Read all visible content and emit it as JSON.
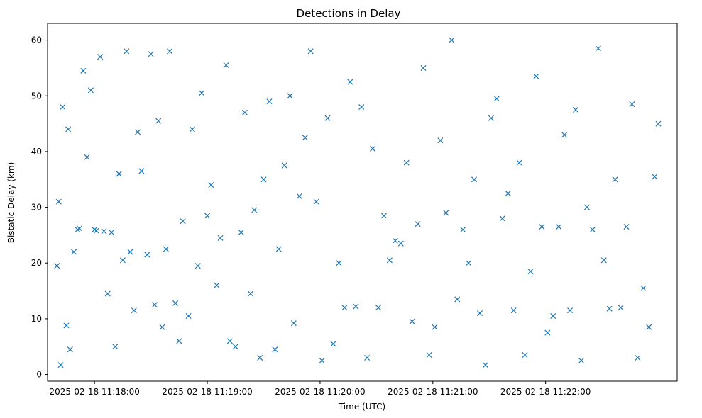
{
  "chart_data": {
    "type": "scatter",
    "title": "Detections in Delay",
    "xlabel": "Time (UTC)",
    "ylabel": "Bistatic Delay (km)",
    "x_ticks": [
      "2025-02-18 11:18:00",
      "2025-02-18 11:19:00",
      "2025-02-18 11:20:00",
      "2025-02-18 11:21:00",
      "2025-02-18 11:22:00"
    ],
    "y_ticks": [
      0,
      10,
      20,
      30,
      40,
      50,
      60
    ],
    "xlim": [
      "2025-02-18 11:17:35",
      "2025-02-18 11:23:10"
    ],
    "ylim": [
      -1.2,
      63.0
    ],
    "marker": "x",
    "color": "#1f77b4",
    "grid": false,
    "series": [
      {
        "x": [
          "11:17:40",
          "11:17:41",
          "11:17:42",
          "11:17:43",
          "11:17:45",
          "11:17:46",
          "11:17:47",
          "11:17:49",
          "11:17:51",
          "11:17:52",
          "11:17:54",
          "11:17:56",
          "11:17:58",
          "11:18:00",
          "11:18:01",
          "11:18:03",
          "11:18:05",
          "11:18:07",
          "11:18:09",
          "11:18:11",
          "11:18:13",
          "11:18:15",
          "11:18:17",
          "11:18:19",
          "11:18:21",
          "11:18:23",
          "11:18:25",
          "11:18:28",
          "11:18:30",
          "11:18:32",
          "11:18:34",
          "11:18:36",
          "11:18:38",
          "11:18:40",
          "11:18:43",
          "11:18:45",
          "11:18:47",
          "11:18:50",
          "11:18:52",
          "11:18:55",
          "11:18:57",
          "11:19:00",
          "11:19:02",
          "11:19:05",
          "11:19:07",
          "11:19:10",
          "11:19:12",
          "11:19:15",
          "11:19:18",
          "11:19:20",
          "11:19:23",
          "11:19:25",
          "11:19:28",
          "11:19:30",
          "11:19:33",
          "11:19:36",
          "11:19:38",
          "11:19:41",
          "11:19:44",
          "11:19:46",
          "11:19:49",
          "11:19:52",
          "11:19:55",
          "11:19:58",
          "11:20:01",
          "11:20:04",
          "11:20:07",
          "11:20:10",
          "11:20:13",
          "11:20:16",
          "11:20:19",
          "11:20:22",
          "11:20:25",
          "11:20:28",
          "11:20:31",
          "11:20:34",
          "11:20:37",
          "11:20:40",
          "11:20:43",
          "11:20:46",
          "11:20:49",
          "11:20:52",
          "11:20:55",
          "11:20:58",
          "11:21:01",
          "11:21:04",
          "11:21:07",
          "11:21:10",
          "11:21:13",
          "11:21:16",
          "11:21:19",
          "11:21:22",
          "11:21:25",
          "11:21:28",
          "11:21:31",
          "11:21:34",
          "11:21:37",
          "11:21:40",
          "11:21:43",
          "11:21:46",
          "11:21:49",
          "11:21:52",
          "11:21:55",
          "11:21:58",
          "11:22:01",
          "11:22:04",
          "11:22:07",
          "11:22:10",
          "11:22:13",
          "11:22:16",
          "11:22:19",
          "11:22:22",
          "11:22:25",
          "11:22:28",
          "11:22:31",
          "11:22:34",
          "11:22:37",
          "11:22:40",
          "11:22:43",
          "11:22:46",
          "11:22:49",
          "11:22:52",
          "11:22:55",
          "11:22:58",
          "11:23:00"
        ],
        "y": [
          19.5,
          31.0,
          1.7,
          48.0,
          8.8,
          44.0,
          4.5,
          22.0,
          26.0,
          26.2,
          54.5,
          39.0,
          51.0,
          26.0,
          25.8,
          57.0,
          25.7,
          14.5,
          25.5,
          5.0,
          36.0,
          20.5,
          58.0,
          22.0,
          11.5,
          43.5,
          36.5,
          21.5,
          57.5,
          12.5,
          45.5,
          8.5,
          22.5,
          58.0,
          12.8,
          6.0,
          27.5,
          10.5,
          44.0,
          19.5,
          50.5,
          28.5,
          34.0,
          16.0,
          24.5,
          55.5,
          6.0,
          5.0,
          25.5,
          47.0,
          14.5,
          29.5,
          3.0,
          35.0,
          49.0,
          4.5,
          22.5,
          37.5,
          50.0,
          9.2,
          32.0,
          42.5,
          58.0,
          31.0,
          2.5,
          46.0,
          5.5,
          20.0,
          12.0,
          52.5,
          12.2,
          48.0,
          3.0,
          40.5,
          12.0,
          28.5,
          20.5,
          24.0,
          23.5,
          38.0,
          9.5,
          27.0,
          55.0,
          3.5,
          8.5,
          42.0,
          29.0,
          60.0,
          13.5,
          26.0,
          20.0,
          35.0,
          11.0,
          1.7,
          46.0,
          49.5,
          28.0,
          32.5,
          11.5,
          38.0,
          3.5,
          18.5,
          53.5,
          26.5,
          7.5,
          10.5,
          26.5,
          43.0,
          11.5,
          47.5,
          2.5,
          30.0,
          26.0,
          58.5,
          20.5,
          11.8,
          35.0,
          12.0,
          26.5,
          48.5,
          3.0,
          15.5,
          8.5,
          35.5,
          45.0
        ]
      }
    ]
  }
}
